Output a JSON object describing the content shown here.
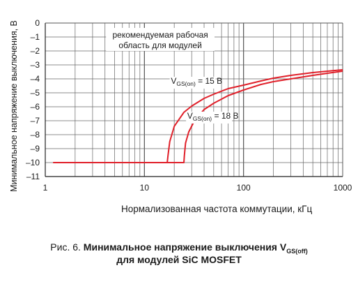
{
  "chart_data": {
    "type": "line",
    "xlabel": "Нормализованная частота коммутации, кГц",
    "ylabel": "Минимальное напряжение выключения, В",
    "x_scale": "log",
    "xlim": [
      1,
      1000
    ],
    "ylim": [
      -11,
      0
    ],
    "x_ticks": [
      "1",
      "10",
      "100",
      "1000"
    ],
    "y_ticks": [
      "0",
      "–1",
      "–2",
      "–3",
      "–4",
      "–5",
      "–6",
      "–7",
      "–8",
      "–9",
      "–10",
      "–11"
    ],
    "grid": true,
    "annotation": [
      "рекомендуемая рабочая",
      "область для модулей"
    ],
    "series": [
      {
        "name": "VGS(on) = 15 В",
        "label_main": "V",
        "label_sub": "GS(on)",
        "label_rest": " = 15 В",
        "color": "#e0202a",
        "x": [
          1.2,
          17,
          17.3,
          18,
          20,
          25,
          30,
          40,
          50,
          70,
          100,
          150,
          200,
          300,
          500,
          700,
          1000
        ],
        "y": [
          -10,
          -10,
          -9.5,
          -8.5,
          -7.4,
          -6.4,
          -5.95,
          -5.4,
          -5.1,
          -4.7,
          -4.45,
          -4.15,
          -3.95,
          -3.75,
          -3.55,
          -3.45,
          -3.35
        ]
      },
      {
        "name": "VGS(on) = 18 В",
        "label_main": "V",
        "label_sub": "GS(on)",
        "label_rest": " = 18 В",
        "color": "#e0202a",
        "x": [
          1.2,
          25,
          25.3,
          26,
          28,
          32,
          40,
          50,
          70,
          100,
          150,
          200,
          300,
          500,
          700,
          1000
        ],
        "y": [
          -10,
          -10,
          -9.5,
          -8.6,
          -7.8,
          -7.0,
          -6.2,
          -5.75,
          -5.2,
          -4.8,
          -4.4,
          -4.2,
          -4.0,
          -3.75,
          -3.6,
          -3.45
        ]
      }
    ]
  },
  "caption": {
    "prefix": "Рис. 6. ",
    "bold_text": "Минимальное напряжение выключения V",
    "bold_sub": "GS(off)",
    "line2": "для модулей SiC MOSFET"
  }
}
